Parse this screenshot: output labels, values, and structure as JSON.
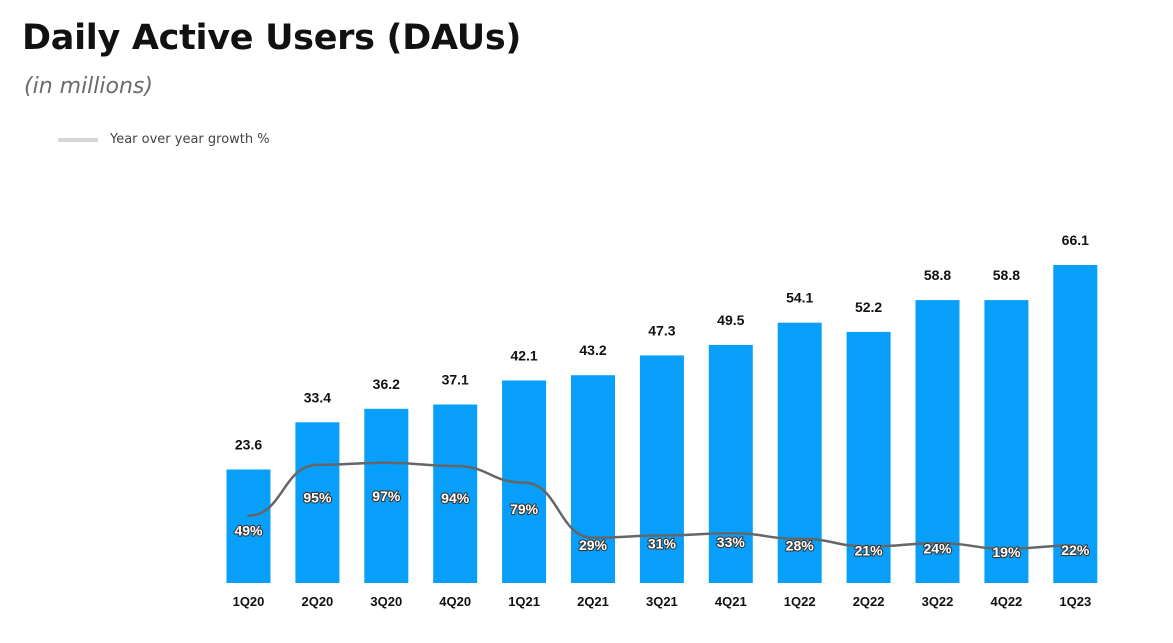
{
  "header": {
    "title": "Daily Active Users (DAUs)",
    "subtitle": "(in millions)"
  },
  "legend": {
    "label": "Year over year growth %",
    "color": "#d6d6d6",
    "placement": "top-left"
  },
  "colors": {
    "bar": "#079ff9",
    "line": "#666666"
  },
  "chart_data": {
    "type": "bar",
    "title": "Daily Active Users (DAUs)",
    "subtitle": "(in millions)",
    "xlabel": "",
    "ylabel": "",
    "ylim": [
      0,
      66.1
    ],
    "grid": false,
    "categories": [
      "1Q20",
      "2Q20",
      "3Q20",
      "4Q20",
      "1Q21",
      "2Q21",
      "3Q21",
      "4Q21",
      "1Q22",
      "2Q22",
      "3Q22",
      "4Q22",
      "1Q23"
    ],
    "series": [
      {
        "type": "bar",
        "values": [
          23.6,
          33.4,
          36.2,
          37.1,
          42.1,
          43.2,
          47.3,
          49.5,
          54.1,
          52.2,
          58.8,
          58.8,
          66.1
        ],
        "value_labels": [
          "23.6",
          "33.4",
          "36.2",
          "37.1",
          "42.1",
          "43.2",
          "47.3",
          "49.5",
          "54.1",
          "52.2",
          "58.8",
          "58.8",
          "66.1"
        ]
      },
      {
        "name": "Year over year growth %",
        "type": "line",
        "values": [
          49,
          95,
          97,
          94,
          79,
          29,
          31,
          33,
          28,
          21,
          24,
          19,
          22
        ],
        "value_labels": [
          "49%",
          "95%",
          "97%",
          "94%",
          "79%",
          "29%",
          "31%",
          "33%",
          "28%",
          "21%",
          "24%",
          "19%",
          "22%"
        ]
      }
    ]
  }
}
